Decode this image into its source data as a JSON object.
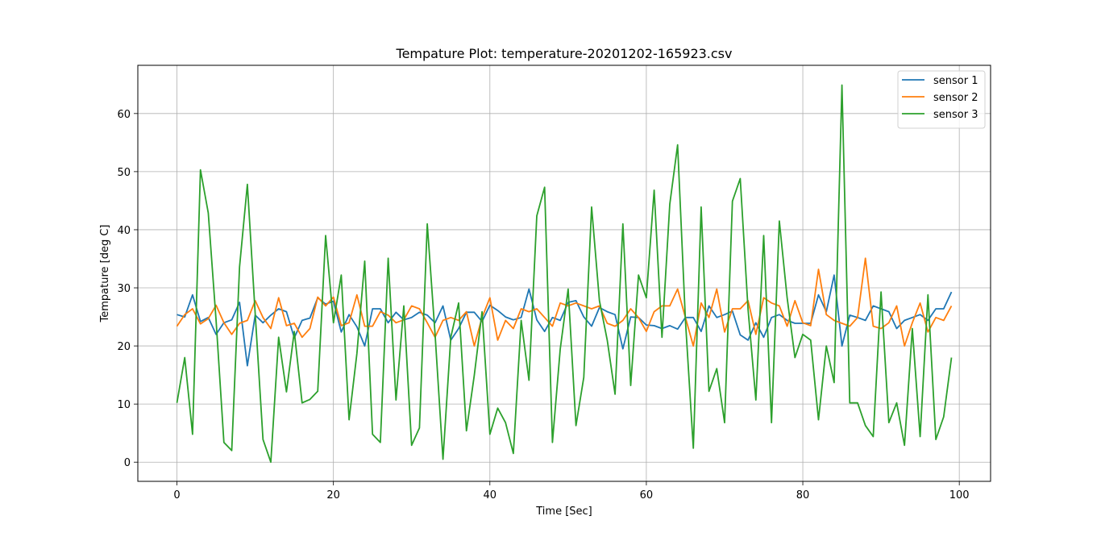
{
  "chart_data": {
    "type": "line",
    "title": "Tempature Plot: temperature-20201202-165923.csv",
    "xlabel": "Time [Sec]",
    "ylabel": "Tempature [deg C]",
    "xlim": [
      -5,
      104
    ],
    "ylim": [
      -3.3,
      68.3
    ],
    "xticks": [
      0,
      20,
      40,
      60,
      80,
      100
    ],
    "yticks": [
      0,
      10,
      20,
      30,
      40,
      50,
      60
    ],
    "grid": true,
    "legend_position": "top-right",
    "x": [
      0,
      1,
      2,
      3,
      4,
      5,
      6,
      7,
      8,
      9,
      10,
      11,
      12,
      13,
      14,
      15,
      16,
      17,
      18,
      19,
      20,
      21,
      22,
      23,
      24,
      25,
      26,
      27,
      28,
      29,
      30,
      31,
      32,
      33,
      34,
      35,
      36,
      37,
      38,
      39,
      40,
      41,
      42,
      43,
      44,
      45,
      46,
      47,
      48,
      49,
      50,
      51,
      52,
      53,
      54,
      55,
      56,
      57,
      58,
      59,
      60,
      61,
      62,
      63,
      64,
      65,
      66,
      67,
      68,
      69,
      70,
      71,
      72,
      73,
      74,
      75,
      76,
      77,
      78,
      79,
      80,
      81,
      82,
      83,
      84,
      85,
      86,
      87,
      88,
      89,
      90,
      91,
      92,
      93,
      94,
      95,
      96,
      97,
      98,
      99
    ],
    "series": [
      {
        "name": "sensor 1",
        "color": "#1f77b4",
        "values": [
          25.4,
          25.0,
          28.8,
          24.2,
          24.9,
          22.0,
          24.0,
          24.5,
          27.5,
          16.6,
          25.3,
          24.0,
          25.3,
          26.4,
          25.9,
          21.4,
          24.4,
          24.8,
          28.3,
          27.2,
          27.7,
          22.4,
          25.4,
          23.3,
          20.0,
          26.4,
          26.4,
          24.0,
          25.8,
          24.5,
          24.9,
          25.8,
          25.3,
          24.0,
          26.9,
          21.0,
          23.0,
          25.8,
          25.8,
          24.2,
          27.0,
          26.1,
          25.0,
          24.5,
          24.9,
          29.8,
          24.5,
          22.5,
          24.9,
          24.4,
          27.5,
          27.8,
          25.0,
          23.4,
          26.6,
          25.9,
          25.4,
          19.5,
          25.0,
          24.9,
          23.6,
          23.5,
          23.0,
          23.5,
          22.9,
          24.9,
          24.9,
          22.5,
          26.9,
          24.9,
          25.4,
          26.0,
          21.9,
          21.0,
          24.0,
          21.5,
          24.9,
          25.4,
          24.4,
          23.9,
          23.9,
          23.9,
          28.8,
          25.9,
          32.2,
          20.0,
          25.3,
          24.9,
          24.4,
          26.9,
          26.4,
          25.9,
          23.0,
          24.4,
          24.9,
          25.4,
          24.4,
          26.4,
          26.4,
          29.3
        ]
      },
      {
        "name": "sensor 2",
        "color": "#ff7f0e",
        "values": [
          23.4,
          25.4,
          26.4,
          23.8,
          24.7,
          27.0,
          24.0,
          22.0,
          23.9,
          24.4,
          27.8,
          24.9,
          23.0,
          28.3,
          23.5,
          23.9,
          21.5,
          23.0,
          28.4,
          26.9,
          28.4,
          23.5,
          24.0,
          28.8,
          23.4,
          23.4,
          25.9,
          25.3,
          24.0,
          24.5,
          26.9,
          26.4,
          24.0,
          21.5,
          24.4,
          24.9,
          24.4,
          25.9,
          20.0,
          24.9,
          28.3,
          21.0,
          24.4,
          23.0,
          26.4,
          25.9,
          26.4,
          24.9,
          23.4,
          27.4,
          26.9,
          27.4,
          26.9,
          26.4,
          26.9,
          23.9,
          23.4,
          24.4,
          26.4,
          24.9,
          22.5,
          25.9,
          26.9,
          26.9,
          29.8,
          24.9,
          20.0,
          27.4,
          24.9,
          29.8,
          22.4,
          26.4,
          26.4,
          27.8,
          22.0,
          28.3,
          27.4,
          26.9,
          23.4,
          27.8,
          24.0,
          23.5,
          33.2,
          25.4,
          24.4,
          23.9,
          23.4,
          24.9,
          35.1,
          23.4,
          23.0,
          24.0,
          26.9,
          20.0,
          24.0,
          27.4,
          22.4,
          24.9,
          24.4,
          26.9
        ]
      },
      {
        "name": "sensor 3",
        "color": "#2ca02c",
        "values": [
          10.2,
          18.0,
          4.8,
          50.3,
          42.9,
          24.4,
          3.4,
          2.0,
          33.6,
          47.8,
          25.6,
          3.9,
          0.0,
          21.5,
          12.1,
          22.5,
          10.2,
          10.8,
          12.2,
          39.0,
          24.0,
          32.2,
          7.3,
          18.7,
          34.6,
          4.8,
          3.4,
          35.1,
          10.7,
          26.9,
          2.9,
          5.9,
          41.0,
          22.0,
          0.5,
          21.5,
          27.4,
          5.4,
          14.9,
          25.9,
          4.8,
          9.3,
          6.8,
          1.5,
          24.4,
          14.1,
          42.4,
          47.3,
          3.4,
          19.5,
          29.8,
          6.3,
          14.6,
          43.9,
          27.8,
          21.0,
          11.7,
          41.0,
          13.2,
          32.2,
          28.3,
          46.8,
          21.5,
          44.4,
          54.6,
          24.4,
          2.4,
          43.9,
          12.2,
          16.1,
          6.8,
          44.9,
          48.8,
          26.3,
          10.7,
          39.0,
          6.8,
          41.5,
          28.3,
          18.0,
          22.0,
          21.0,
          7.3,
          20.0,
          13.7,
          64.9,
          10.2,
          10.2,
          6.3,
          4.4,
          29.3,
          6.8,
          10.2,
          2.9,
          23.0,
          4.4,
          28.8,
          3.9,
          7.8,
          18.0
        ]
      }
    ]
  }
}
